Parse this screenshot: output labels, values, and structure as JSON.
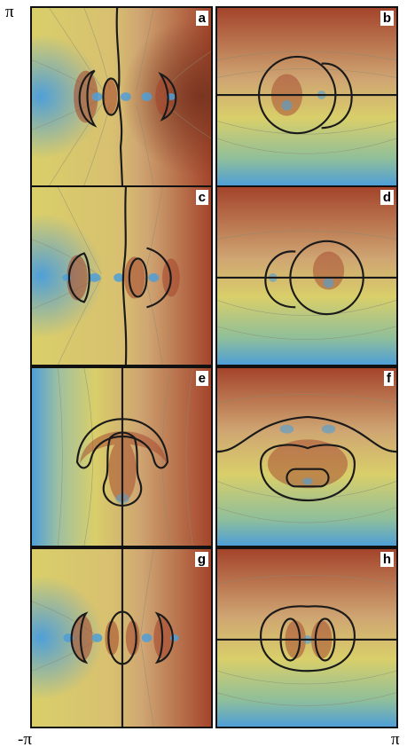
{
  "axis": {
    "top": "π",
    "bottom_left": "-π",
    "bottom_right": "π"
  },
  "panels": [
    {
      "id": "a",
      "label": "a"
    },
    {
      "id": "b",
      "label": "b"
    },
    {
      "id": "c",
      "label": "c"
    },
    {
      "id": "d",
      "label": "d"
    },
    {
      "id": "e",
      "label": "e"
    },
    {
      "id": "f",
      "label": "f"
    },
    {
      "id": "g",
      "label": "g"
    },
    {
      "id": "h",
      "label": "h"
    }
  ],
  "colors": {
    "blue": "#4f9fd8",
    "yellow": "#d9cf6a",
    "tan": "#cfa572",
    "brown": "#a4442b",
    "contour": "#8a8a72",
    "nodal_line": "#1a1a1a"
  }
}
